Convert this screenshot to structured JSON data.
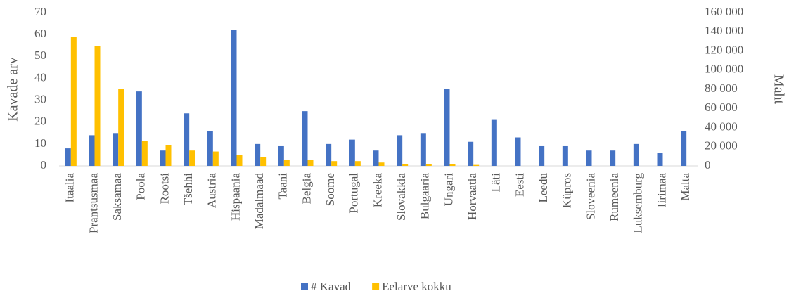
{
  "chart_data": {
    "type": "bar",
    "categories": [
      "Itaalia",
      "Prantsusmaa",
      "Saksamaa",
      "Poola",
      "Rootsi",
      "Tšehhi",
      "Austria",
      "Hispaania",
      "Madalmaad",
      "Taani",
      "Belgia",
      "Soome",
      "Portugal",
      "Kreeka",
      "Slovakkia",
      "Bulgaaria",
      "Ungari",
      "Horvaatia",
      "Läti",
      "Eesti",
      "Leedu",
      "Küpros",
      "Sloveenia",
      "Rumeenia",
      "Luksemburg",
      "Iirimaa",
      "Malta"
    ],
    "series": [
      {
        "name": "# Kavad",
        "color": "#4472c4",
        "values": [
          8,
          14,
          15,
          34,
          7,
          24,
          16,
          62,
          10,
          9,
          25,
          10,
          12,
          7,
          14,
          15,
          35,
          11,
          21,
          13,
          9,
          9,
          7,
          7,
          10,
          6,
          16
        ]
      },
      {
        "name": "Eelarve kokku",
        "color": "#ffc000",
        "axis": "y2",
        "values": [
          135000,
          125000,
          80000,
          26000,
          22000,
          16000,
          15000,
          11000,
          9500,
          6000,
          6000,
          5000,
          5000,
          3500,
          2000,
          1500,
          1500,
          1000,
          0,
          0,
          0,
          0,
          0,
          0,
          0,
          0,
          0
        ]
      }
    ],
    "ylabel": "Kavade arv",
    "y2label": "Maht",
    "ylim": [
      0,
      70
    ],
    "yticks": [
      0,
      10,
      20,
      30,
      40,
      50,
      60,
      70
    ],
    "y2lim": [
      0,
      160000
    ],
    "y2ticks": [
      0,
      {
        "value": 20000,
        "label": "20 000"
      },
      {
        "value": 40000,
        "label": "40 000"
      },
      {
        "value": 60000,
        "label": "60 000"
      },
      {
        "value": 80000,
        "label": "80 000"
      },
      {
        "value": 100000,
        "label": "100 000"
      },
      {
        "value": 120000,
        "label": "120 000"
      },
      {
        "value": 140000,
        "label": "140 000"
      },
      {
        "value": 160000,
        "label": "160 000"
      }
    ],
    "legend": "bottom"
  }
}
